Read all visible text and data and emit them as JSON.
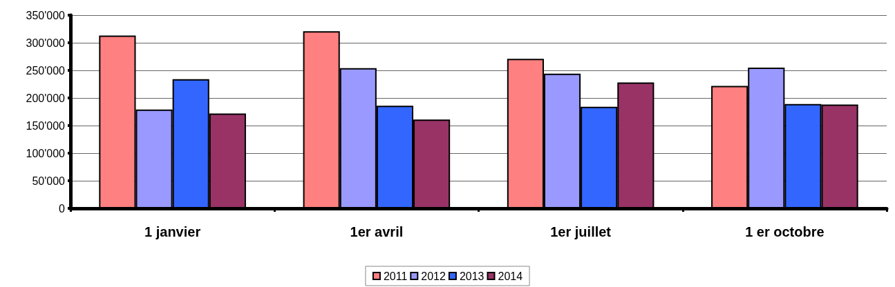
{
  "chart_data": {
    "type": "bar",
    "categories": [
      "1 janvier",
      "1er avril",
      "1er juillet",
      "1 er octobre"
    ],
    "series": [
      {
        "name": "2011",
        "color": "#ff8080",
        "values": [
          313000,
          321000,
          271000,
          222000
        ]
      },
      {
        "name": "2012",
        "color": "#9999ff",
        "values": [
          179000,
          254000,
          244000,
          255000
        ]
      },
      {
        "name": "2013",
        "color": "#3366ff",
        "values": [
          234000,
          186000,
          184000,
          189000
        ]
      },
      {
        "name": "2014",
        "color": "#993366",
        "values": [
          172000,
          161000,
          228000,
          188000
        ]
      }
    ],
    "ylim": [
      0,
      350000
    ],
    "yticks": [
      {
        "value": 0,
        "label": "0"
      },
      {
        "value": 50000,
        "label": "50'000"
      },
      {
        "value": 100000,
        "label": "100'000"
      },
      {
        "value": 150000,
        "label": "150'000"
      },
      {
        "value": 200000,
        "label": "200'000"
      },
      {
        "value": 250000,
        "label": "250'000"
      },
      {
        "value": 300000,
        "label": "300'000"
      },
      {
        "value": 350000,
        "label": "350'000"
      }
    ],
    "grid": "y",
    "legend": "bottom"
  }
}
